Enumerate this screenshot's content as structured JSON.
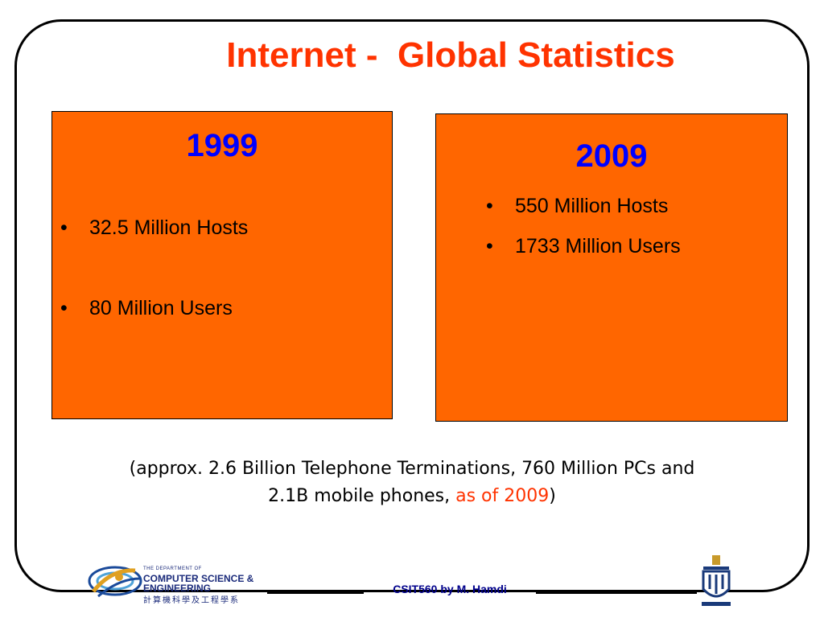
{
  "title": "Internet -  Global Statistics",
  "box_1999": {
    "year": "1999",
    "bullets": [
      "32.5 Million Hosts",
      "80 Million Users"
    ]
  },
  "box_2009": {
    "year": "2009",
    "bullets": [
      "550 Million Hosts",
      "1733 Million Users"
    ]
  },
  "note": {
    "line1": "(approx. 2.6 Billion Telephone Terminations, 760 Million PCs and",
    "line2_prefix": "2.1B mobile phones, ",
    "line2_highlight": "as of 2009",
    "line2_suffix": ")"
  },
  "department": {
    "small": "THE DEPARTMENT OF",
    "line1": "COMPUTER SCIENCE &",
    "line2": "ENGINEERING",
    "chinese": "計算機科學及工程學系"
  },
  "footer": "CSIT560 by M. Hamdi",
  "colors": {
    "title": "#ff3300",
    "box_fill": "#ff6600",
    "year": "#0000ff",
    "highlight": "#ff3300",
    "footer": "#00008b"
  },
  "icons": [
    "department-logo-icon",
    "university-crest-icon"
  ]
}
